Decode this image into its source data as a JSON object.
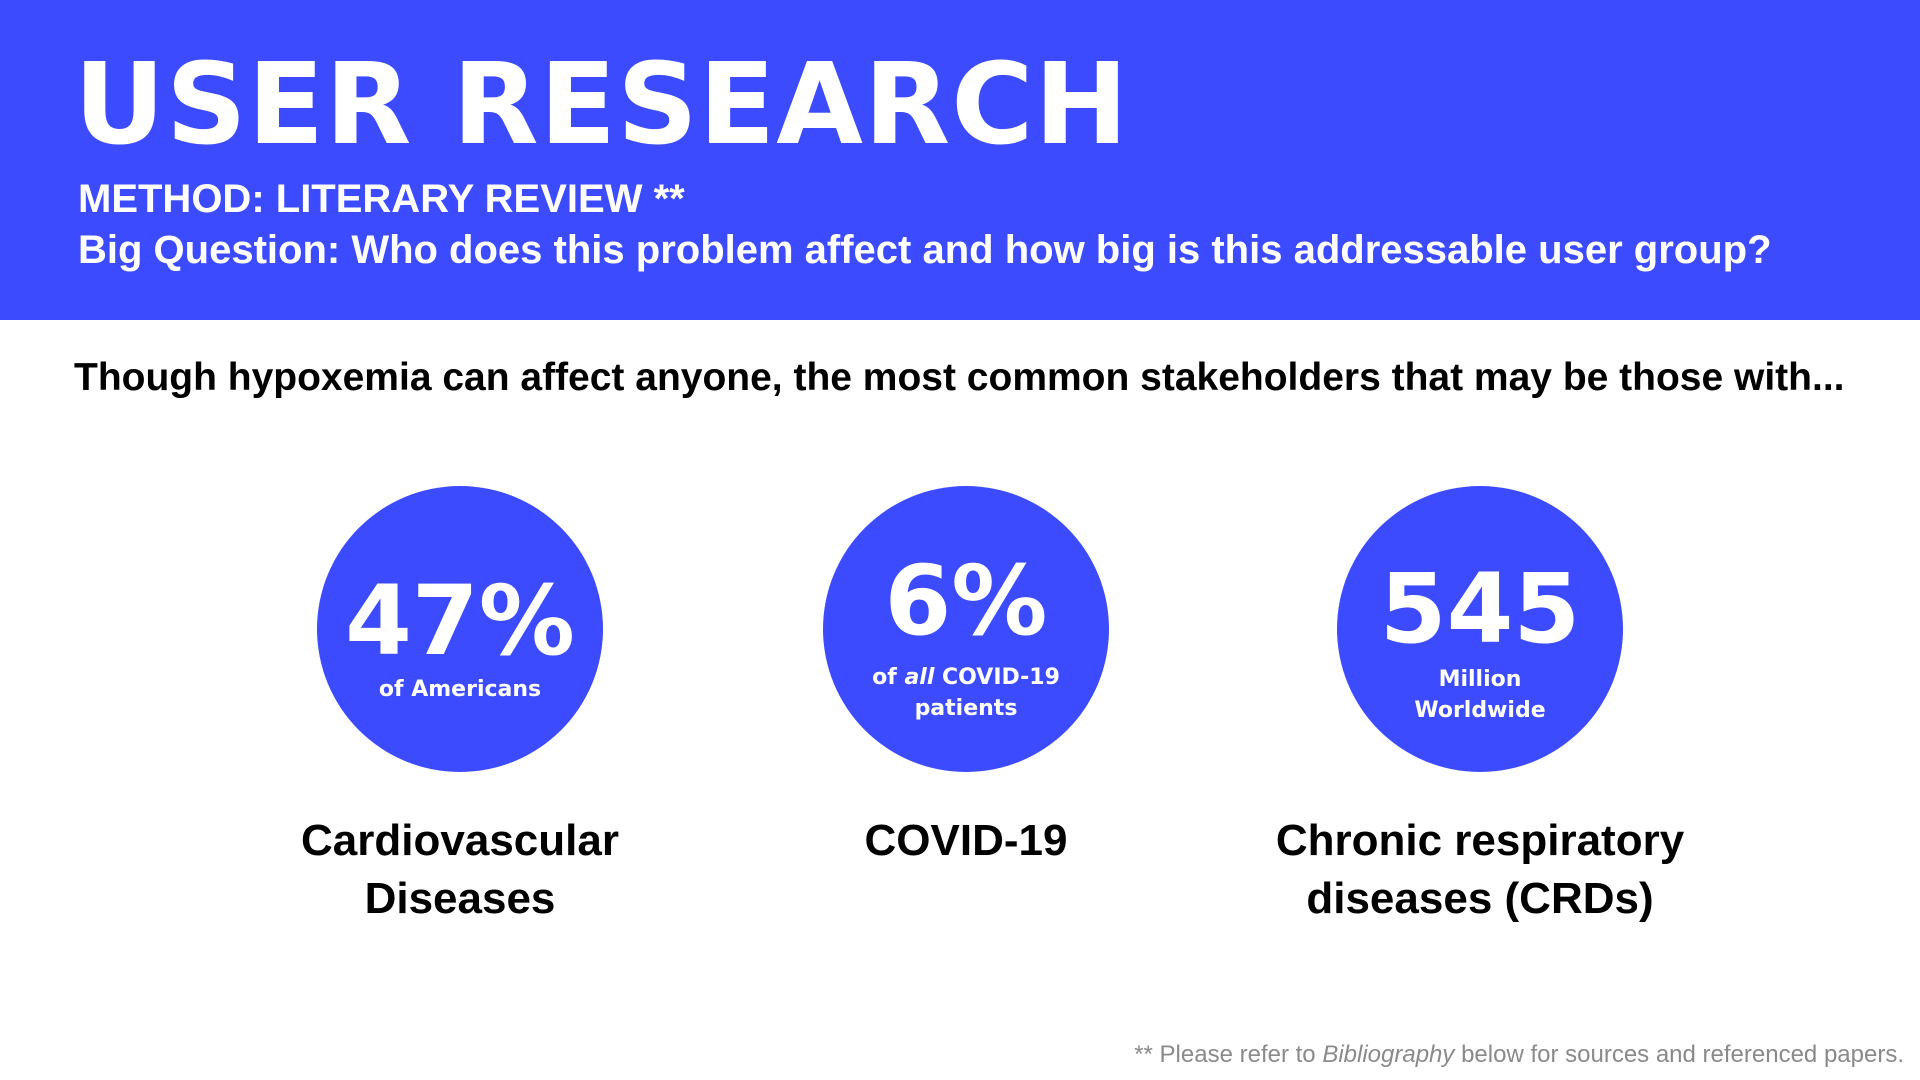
{
  "header": {
    "title": "USER RESEARCH",
    "method": "METHOD: LITERARY REVIEW **",
    "question": "Big Question: Who does this problem affect and how big is this addressable user group?"
  },
  "intro": "Though hypoxemia can affect anyone, the most common stakeholders that may be those with...",
  "stats": [
    {
      "value": "47%",
      "caption": "of Americans",
      "label_line1": "Cardiovascular",
      "label_line2": "Diseases"
    },
    {
      "value": "6%",
      "caption_prefix": "of ",
      "caption_emphasis": "all",
      "caption_suffix": " COVID-19",
      "caption_line2": "patients",
      "label_line1": "COVID-19"
    },
    {
      "value": "545",
      "caption_line1": "Million",
      "caption_line2": "Worldwide",
      "label_line1": "Chronic respiratory",
      "label_line2": "diseases (CRDs)"
    }
  ],
  "colors": {
    "accent": "#3d4bff",
    "text": "#000000",
    "footnote": "#8a8a8a"
  },
  "footnote": {
    "prefix": "** Please refer to ",
    "emphasis": "Bibliography",
    "suffix": " below for sources and referenced papers."
  }
}
